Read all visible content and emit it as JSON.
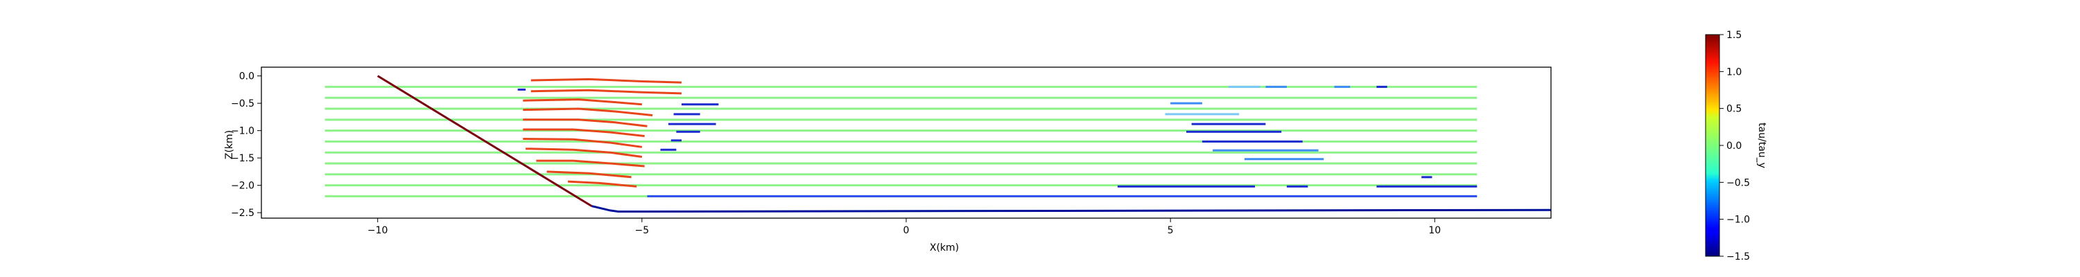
{
  "chart_data": {
    "type": "line",
    "title": "",
    "xlabel": "X(km)",
    "ylabel": "Z(km)",
    "xlim": [
      -12.2,
      12.2
    ],
    "ylim": [
      -2.6,
      0.16
    ],
    "xticks": [
      -10,
      -5,
      0,
      5,
      10
    ],
    "xtick_labels": [
      "−10",
      "−5",
      "0",
      "5",
      "10"
    ],
    "yticks": [
      0.0,
      -0.5,
      -1.0,
      -1.5,
      -2.0,
      -2.5
    ],
    "ytick_labels": [
      "0.0",
      "−0.5",
      "−1.0",
      "−1.5",
      "−2.0",
      "−2.5"
    ],
    "grid": false,
    "colorbar": {
      "label": "tau/tau_y",
      "colormap": "jet",
      "range": [
        -1.5,
        1.5
      ],
      "ticks": [
        1.5,
        1.0,
        0.5,
        0.0,
        -0.5,
        -1.0,
        -1.5
      ],
      "tick_labels": [
        "1.5",
        "1.0",
        "0.5",
        "0.0",
        "−0.5",
        "−1.0",
        "−1.5"
      ]
    },
    "background_line_color": "#8ef28a",
    "background_lines": {
      "depths": [
        -0.2,
        -0.4,
        -0.6,
        -0.8,
        -1.0,
        -1.2,
        -1.4,
        -1.6,
        -1.8,
        -2.0,
        -2.2
      ],
      "x_start": -11.0,
      "x_end": 10.8
    },
    "fault": {
      "name": "fault",
      "color": "#7a0010",
      "points": [
        [
          -10.0,
          0.0
        ],
        [
          -5.95,
          -2.38
        ]
      ]
    },
    "basement": {
      "name": "basement boundary",
      "color": "#00109a",
      "points": [
        [
          -5.95,
          -2.38
        ],
        [
          -5.6,
          -2.46
        ],
        [
          -5.45,
          -2.48
        ],
        [
          -5.0,
          -2.48
        ],
        [
          12.2,
          -2.45
        ]
      ]
    },
    "highlight_segments": [
      {
        "name": "fold",
        "color": "#e8461a",
        "points": [
          [
            -7.1,
            -0.08
          ],
          [
            -6.0,
            -0.06
          ],
          [
            -5.0,
            -0.1
          ],
          [
            -4.25,
            -0.12
          ]
        ]
      },
      {
        "name": "fold",
        "color": "#e8461a",
        "points": [
          [
            -7.1,
            -0.28
          ],
          [
            -6.0,
            -0.26
          ],
          [
            -5.0,
            -0.3
          ],
          [
            -4.25,
            -0.32
          ]
        ]
      },
      {
        "name": "fold",
        "color": "#e8461a",
        "points": [
          [
            -7.25,
            -0.45
          ],
          [
            -6.2,
            -0.43
          ],
          [
            -5.5,
            -0.48
          ],
          [
            -5.0,
            -0.52
          ]
        ]
      },
      {
        "name": "fold",
        "color": "#e8461a",
        "points": [
          [
            -7.25,
            -0.62
          ],
          [
            -6.2,
            -0.6
          ],
          [
            -5.5,
            -0.65
          ],
          [
            -4.8,
            -0.72
          ]
        ]
      },
      {
        "name": "fold",
        "color": "#e8461a",
        "points": [
          [
            -7.25,
            -0.8
          ],
          [
            -6.2,
            -0.8
          ],
          [
            -5.5,
            -0.85
          ],
          [
            -4.9,
            -0.92
          ]
        ]
      },
      {
        "name": "fold",
        "color": "#e8461a",
        "points": [
          [
            -7.25,
            -0.98
          ],
          [
            -6.3,
            -0.98
          ],
          [
            -5.6,
            -1.03
          ],
          [
            -4.95,
            -1.1
          ]
        ]
      },
      {
        "name": "fold",
        "color": "#e8461a",
        "points": [
          [
            -7.25,
            -1.15
          ],
          [
            -6.3,
            -1.16
          ],
          [
            -5.6,
            -1.22
          ],
          [
            -5.0,
            -1.3
          ]
        ]
      },
      {
        "name": "fold",
        "color": "#e8461a",
        "points": [
          [
            -7.2,
            -1.33
          ],
          [
            -6.3,
            -1.35
          ],
          [
            -5.6,
            -1.4
          ],
          [
            -5.0,
            -1.48
          ]
        ]
      },
      {
        "name": "fold",
        "color": "#e8461a",
        "points": [
          [
            -7.0,
            -1.55
          ],
          [
            -6.3,
            -1.55
          ],
          [
            -5.6,
            -1.6
          ],
          [
            -4.95,
            -1.65
          ]
        ]
      },
      {
        "name": "fold",
        "color": "#e8461a",
        "points": [
          [
            -6.8,
            -1.75
          ],
          [
            -6.0,
            -1.78
          ],
          [
            -5.2,
            -1.85
          ]
        ]
      },
      {
        "name": "fold",
        "color": "#e8461a",
        "points": [
          [
            -6.4,
            -1.93
          ],
          [
            -5.8,
            -1.96
          ],
          [
            -5.1,
            -2.02
          ]
        ]
      },
      {
        "name": "blue-segment",
        "color": "#1a2ad0",
        "points": [
          [
            -7.35,
            -0.25
          ],
          [
            -7.2,
            -0.25
          ]
        ]
      },
      {
        "name": "blue-segment",
        "color": "#1a2ad0",
        "points": [
          [
            -4.25,
            -0.52
          ],
          [
            -3.55,
            -0.52
          ]
        ]
      },
      {
        "name": "blue-segment",
        "color": "#1a2ad0",
        "points": [
          [
            -4.4,
            -0.7
          ],
          [
            -3.9,
            -0.7
          ]
        ]
      },
      {
        "name": "blue-segment",
        "color": "#1a2ad0",
        "points": [
          [
            -4.5,
            -0.88
          ],
          [
            -3.6,
            -0.88
          ]
        ]
      },
      {
        "name": "blue-segment",
        "color": "#1a2ad0",
        "points": [
          [
            -4.35,
            -1.02
          ],
          [
            -3.9,
            -1.02
          ]
        ]
      },
      {
        "name": "blue-segment",
        "color": "#1a2ad0",
        "points": [
          [
            -4.45,
            -1.18
          ],
          [
            -4.25,
            -1.18
          ]
        ]
      },
      {
        "name": "blue-segment",
        "color": "#1a2ad0",
        "points": [
          [
            -4.65,
            -1.35
          ],
          [
            -4.35,
            -1.35
          ]
        ]
      },
      {
        "name": "blue-segment",
        "color": "#2f4cf0",
        "points": [
          [
            -4.9,
            -2.2
          ],
          [
            10.8,
            -2.2
          ]
        ]
      },
      {
        "name": "blue-segment",
        "color": "#1a2ad0",
        "points": [
          [
            4.0,
            -2.02
          ],
          [
            6.6,
            -2.02
          ]
        ]
      },
      {
        "name": "blue-segment",
        "color": "#1a2ad0",
        "points": [
          [
            7.2,
            -2.02
          ],
          [
            7.6,
            -2.02
          ]
        ]
      },
      {
        "name": "blue-segment",
        "color": "#1a2ad0",
        "points": [
          [
            8.9,
            -2.02
          ],
          [
            10.8,
            -2.02
          ]
        ]
      },
      {
        "name": "blue-segment",
        "color": "#1a2ad0",
        "points": [
          [
            9.75,
            -1.85
          ],
          [
            9.95,
            -1.85
          ]
        ]
      },
      {
        "name": "blue-segment",
        "color": "#1a2ad0",
        "points": [
          [
            8.9,
            -0.2
          ],
          [
            9.1,
            -0.2
          ]
        ]
      },
      {
        "name": "blue-segment",
        "color": "#3d8bf5",
        "points": [
          [
            8.1,
            -0.2
          ],
          [
            8.4,
            -0.2
          ]
        ]
      },
      {
        "name": "blue-segment",
        "color": "#3d8bf5",
        "points": [
          [
            6.8,
            -0.2
          ],
          [
            7.2,
            -0.2
          ]
        ]
      },
      {
        "name": "blue-segment",
        "color": "#3d8bf5",
        "points": [
          [
            5.0,
            -0.5
          ],
          [
            5.6,
            -0.5
          ]
        ]
      },
      {
        "name": "blue-segment",
        "color": "#7ac8f5",
        "points": [
          [
            4.9,
            -0.7
          ],
          [
            6.3,
            -0.7
          ]
        ]
      },
      {
        "name": "blue-segment",
        "color": "#1a2ad0",
        "points": [
          [
            5.4,
            -0.88
          ],
          [
            6.8,
            -0.88
          ]
        ]
      },
      {
        "name": "blue-segment",
        "color": "#1a2ad0",
        "points": [
          [
            5.3,
            -1.02
          ],
          [
            7.1,
            -1.02
          ]
        ]
      },
      {
        "name": "blue-segment",
        "color": "#1a2ad0",
        "points": [
          [
            5.6,
            -1.2
          ],
          [
            7.5,
            -1.2
          ]
        ]
      },
      {
        "name": "blue-segment",
        "color": "#3d8bf5",
        "points": [
          [
            5.8,
            -1.36
          ],
          [
            7.8,
            -1.36
          ]
        ]
      },
      {
        "name": "blue-segment",
        "color": "#3d8bf5",
        "points": [
          [
            6.4,
            -1.52
          ],
          [
            7.9,
            -1.52
          ]
        ]
      },
      {
        "name": "blue-segment",
        "color": "#7ac8f5",
        "points": [
          [
            6.1,
            -0.2
          ],
          [
            6.7,
            -0.2
          ]
        ]
      }
    ]
  }
}
